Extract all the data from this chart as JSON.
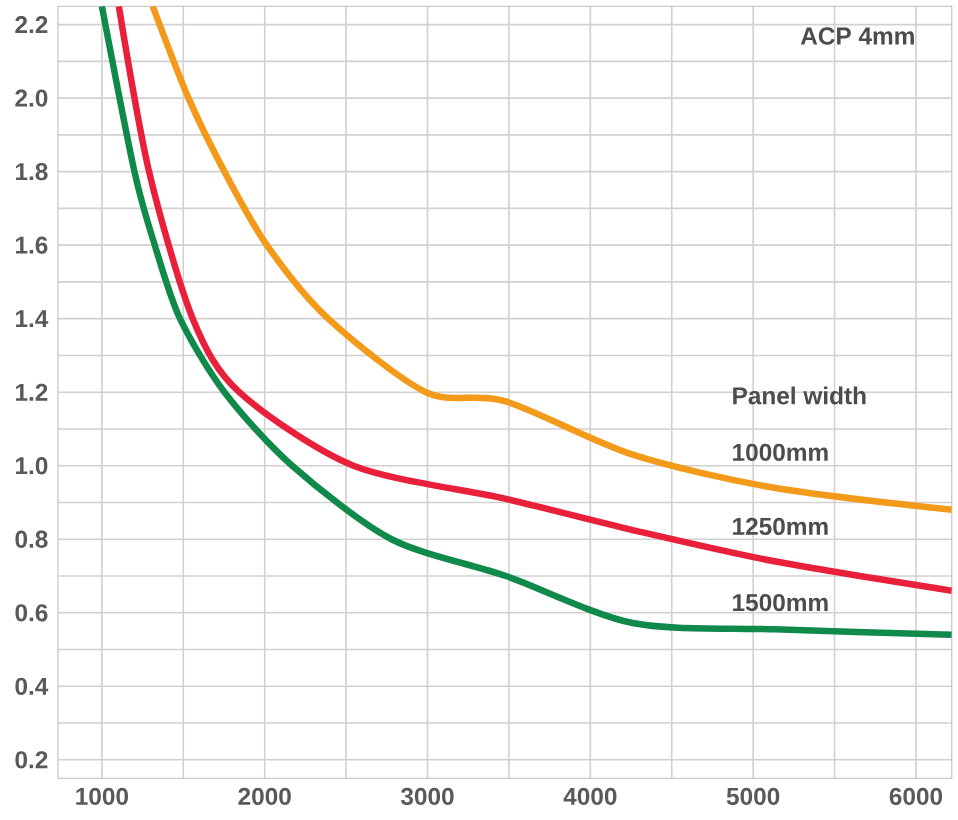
{
  "chart_data": {
    "type": "line",
    "title": "ACP  4mm",
    "annotations": [
      "Panel width"
    ],
    "xlim": [
      730,
      6220
    ],
    "ylim": [
      0.15,
      2.25
    ],
    "xticks": [
      1000,
      2000,
      3000,
      4000,
      5000,
      6000
    ],
    "yticks": [
      {
        "value": 0.2,
        "label": "0.2"
      },
      {
        "value": 0.4,
        "label": "0.4"
      },
      {
        "value": 0.6,
        "label": "0.6"
      },
      {
        "value": 0.8,
        "label": "0.8"
      },
      {
        "value": 1.0,
        "label": "1.0"
      },
      {
        "value": 1.2,
        "label": "1.2"
      },
      {
        "value": 1.4,
        "label": "1.4"
      },
      {
        "value": 1.6,
        "label": "1.6"
      },
      {
        "value": 1.8,
        "label": "1.8"
      },
      {
        "value": 2.0,
        "label": "2.0"
      },
      {
        "value": 2.2,
        "label": "2.2"
      }
    ],
    "grid": true,
    "legend": false,
    "marker": "none",
    "line_style": "solid",
    "series": [
      {
        "name": "1000mm",
        "color": "#f39a1a",
        "x": [
          1312,
          1532,
          1753,
          2013,
          2390,
          2990,
          3481,
          4260,
          5130,
          6220
        ],
        "values": [
          2.25,
          2.0,
          1.8,
          1.6,
          1.4,
          1.2,
          1.175,
          1.03,
          0.94,
          0.88
        ]
      },
      {
        "name": "1250mm",
        "color": "#e8203a",
        "x": [
          1104,
          1290,
          1558,
          1844,
          2545,
          3481,
          4260,
          5130,
          6220
        ],
        "values": [
          2.25,
          1.8,
          1.4,
          1.2,
          1.0,
          0.91,
          0.825,
          0.74,
          0.66
        ]
      },
      {
        "name": "1500mm",
        "color": "#0f8a4a",
        "x": [
          1000,
          1200,
          1325,
          1480,
          1753,
          2169,
          2779,
          3481,
          4260,
          5130,
          6220
        ],
        "values": [
          2.25,
          1.8,
          1.6,
          1.4,
          1.2,
          1.0,
          0.8,
          0.7,
          0.572,
          0.555,
          0.54
        ]
      }
    ]
  }
}
